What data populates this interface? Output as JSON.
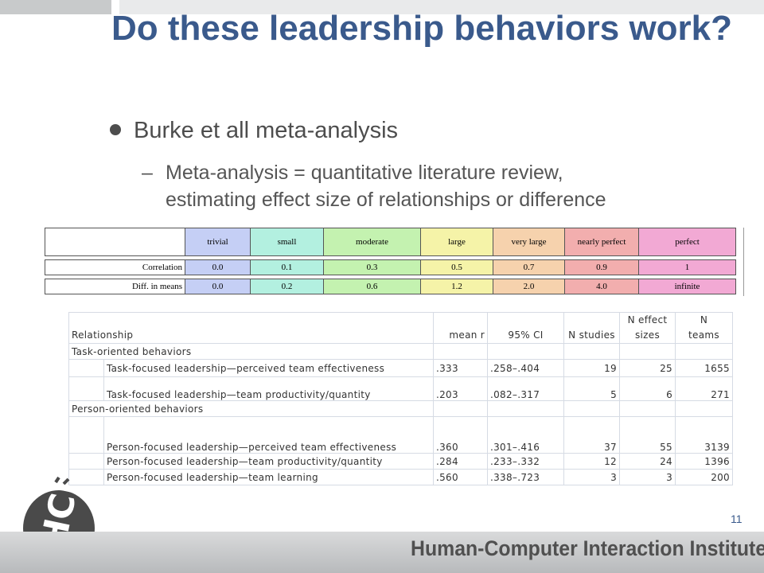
{
  "slide": {
    "title": "Do these leadership behaviors work?",
    "bullet": "Burke et all meta-analysis",
    "sub_line1": "Meta-analysis = quantitative literature review,",
    "sub_line2": "estimating effect size of relationships or difference",
    "page_number": "11",
    "footer": "Human-Computer Interaction Institute",
    "logo_text": "HCII",
    "accent_color": "#3a5a8c"
  },
  "effect_sizes": {
    "columns": [
      {
        "label": "trivial",
        "color": "#c5cff5"
      },
      {
        "label": "small",
        "color": "#b3f0e0"
      },
      {
        "label": "moderate",
        "color": "#c4f2b0"
      },
      {
        "label": "large",
        "color": "#f5f3a8"
      },
      {
        "label": "very large",
        "color": "#f6d2ad"
      },
      {
        "label": "nearly perfect",
        "color": "#f2aeae"
      },
      {
        "label": "perfect",
        "color": "#f2a9d4"
      }
    ],
    "rows": [
      {
        "label": "Correlation",
        "values": [
          "0.0",
          "0.1",
          "0.3",
          "0.5",
          "0.7",
          "0.9",
          "1"
        ]
      },
      {
        "label": "Diff. in means",
        "values": [
          "0.0",
          "0.2",
          "0.6",
          "1.2",
          "2.0",
          "4.0",
          "infinite"
        ]
      }
    ]
  },
  "relationship_table": {
    "headers": {
      "relationship": "Relationship",
      "mean_r": "mean r",
      "ci": "95% CI",
      "n_studies": "N studies",
      "n_effect_top": "N effect",
      "n_effect_bottom": "sizes",
      "n_teams_top": "N",
      "n_teams_bottom": "teams"
    },
    "groups": [
      {
        "name": "Task-oriented behaviors",
        "rows": [
          {
            "relationship": "Task-focused leadership—perceived team effectiveness",
            "mean_r": ".333",
            "ci": ".258–.404",
            "n_studies": "19",
            "n_effect": "25",
            "n_teams": "1655"
          },
          {
            "relationship": "Task-focused leadership—team productivity/quantity",
            "mean_r": ".203",
            "ci": ".082–.317",
            "n_studies": "5",
            "n_effect": "6",
            "n_teams": "271"
          }
        ]
      },
      {
        "name": "Person-oriented behaviors",
        "rows": [
          {
            "relationship": "Person-focused leadership—perceived team effectiveness",
            "mean_r": ".360",
            "ci": ".301–.416",
            "n_studies": "37",
            "n_effect": "55",
            "n_teams": "3139"
          },
          {
            "relationship": "Person-focused leadership—team productivity/quantity",
            "mean_r": ".284",
            "ci": ".233–.332",
            "n_studies": "12",
            "n_effect": "24",
            "n_teams": "1396"
          },
          {
            "relationship": "Person-focused leadership—team learning",
            "mean_r": ".560",
            "ci": ".338–.723",
            "n_studies": "3",
            "n_effect": "3",
            "n_teams": "200"
          }
        ]
      }
    ]
  }
}
